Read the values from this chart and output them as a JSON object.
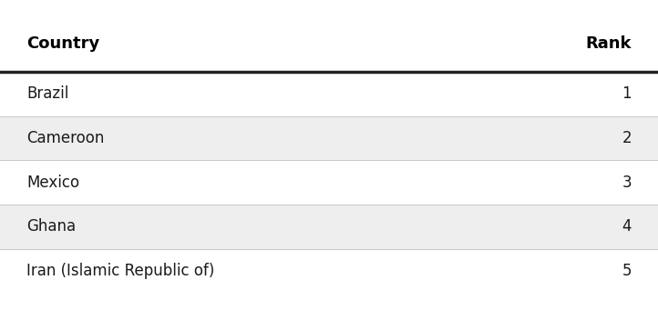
{
  "headers": [
    "Country",
    "Rank"
  ],
  "rows": [
    [
      "Brazil",
      "1"
    ],
    [
      "Cameroon",
      "2"
    ],
    [
      "Mexico",
      "3"
    ],
    [
      "Ghana",
      "4"
    ],
    [
      "Iran (Islamic Republic of)",
      "5"
    ]
  ],
  "bg_color": "#ffffff",
  "row_colors": [
    "#ffffff",
    "#eeeeee",
    "#ffffff",
    "#eeeeee",
    "#ffffff"
  ],
  "header_color": "#ffffff",
  "header_line_color": "#222222",
  "row_line_color": "#cccccc",
  "header_font_size": 13,
  "row_font_size": 12,
  "text_color": "#1a1a1a",
  "header_text_color": "#000000"
}
